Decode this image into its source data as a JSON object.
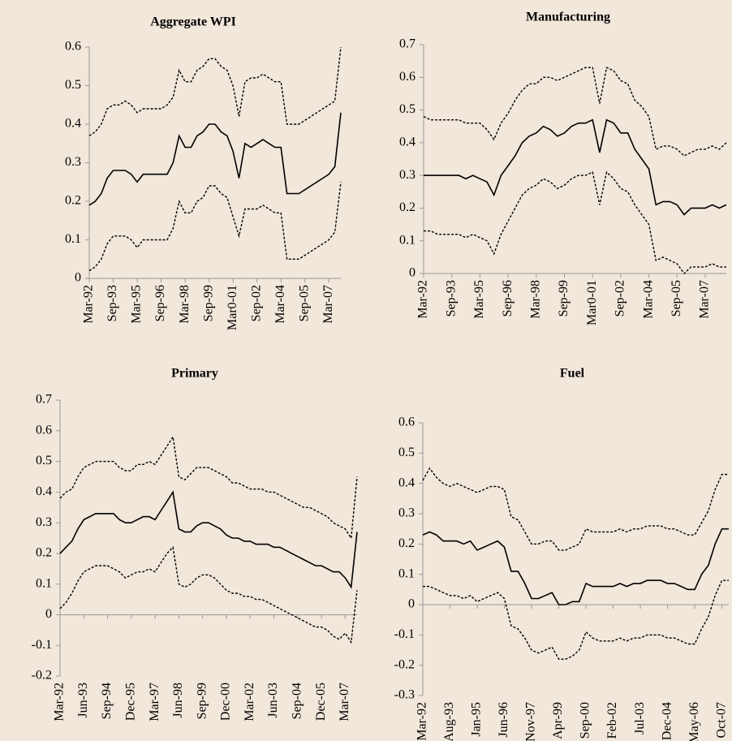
{
  "chart_data": [
    {
      "type": "line",
      "title": "Aggregate WPI",
      "categories": [
        "Mar-92",
        null,
        null,
        null,
        "Sep-93",
        null,
        null,
        null,
        "Mar-95",
        null,
        null,
        null,
        "Sep-96",
        null,
        null,
        null,
        "Mar-98",
        null,
        null,
        null,
        "Sep-99",
        null,
        null,
        null,
        "Mar0-01",
        null,
        null,
        null,
        "Sep-02",
        null,
        null,
        null,
        "Mar-04",
        null,
        null,
        null,
        "Sep-05",
        null,
        null,
        null,
        "Mar-07",
        null,
        null
      ],
      "ylim": [
        0,
        0.6
      ],
      "yticks": [
        0,
        0.1,
        0.2,
        0.3,
        0.4,
        0.5,
        0.6
      ],
      "grid": false,
      "series": [
        {
          "color": "#000000",
          "style": "dotted",
          "values": [
            0.37,
            0.38,
            0.4,
            0.44,
            0.45,
            0.45,
            0.46,
            0.45,
            0.43,
            0.44,
            0.44,
            0.44,
            0.44,
            0.45,
            0.47,
            0.54,
            0.51,
            0.51,
            0.54,
            0.55,
            0.57,
            0.57,
            0.55,
            0.54,
            0.5,
            0.42,
            0.51,
            0.52,
            0.52,
            0.53,
            0.52,
            0.51,
            0.51,
            0.4,
            0.4,
            0.4,
            0.41,
            0.42,
            0.43,
            0.44,
            0.45,
            0.46,
            0.6
          ]
        },
        {
          "color": "#000000",
          "style": "solid",
          "values": [
            0.19,
            0.2,
            0.22,
            0.26,
            0.28,
            0.28,
            0.28,
            0.27,
            0.25,
            0.27,
            0.27,
            0.27,
            0.27,
            0.27,
            0.3,
            0.37,
            0.34,
            0.34,
            0.37,
            0.38,
            0.4,
            0.4,
            0.38,
            0.37,
            0.33,
            0.26,
            0.35,
            0.34,
            0.35,
            0.36,
            0.35,
            0.34,
            0.34,
            0.22,
            0.22,
            0.22,
            0.23,
            0.24,
            0.25,
            0.26,
            0.27,
            0.29,
            0.43
          ]
        },
        {
          "color": "#000000",
          "style": "dotted",
          "values": [
            0.02,
            0.03,
            0.05,
            0.09,
            0.11,
            0.11,
            0.11,
            0.1,
            0.08,
            0.1,
            0.1,
            0.1,
            0.1,
            0.1,
            0.13,
            0.2,
            0.17,
            0.17,
            0.2,
            0.21,
            0.24,
            0.24,
            0.22,
            0.21,
            0.16,
            0.11,
            0.18,
            0.18,
            0.18,
            0.19,
            0.18,
            0.17,
            0.17,
            0.05,
            0.05,
            0.05,
            0.06,
            0.07,
            0.08,
            0.09,
            0.1,
            0.12,
            0.25
          ]
        }
      ]
    },
    {
      "type": "line",
      "title": "Manufacturing",
      "categories": [
        "Mar-92",
        null,
        null,
        null,
        "Sep-93",
        null,
        null,
        null,
        "Mar-95",
        null,
        null,
        null,
        "Sep-96",
        null,
        null,
        null,
        "Mar-98",
        null,
        null,
        null,
        "Sep-99",
        null,
        null,
        null,
        "Mar0-01",
        null,
        null,
        null,
        "Sep-02",
        null,
        null,
        null,
        "Mar-04",
        null,
        null,
        null,
        "Sep-05",
        null,
        null,
        null,
        "Mar-07",
        null,
        null,
        null
      ],
      "ylim": [
        0,
        0.7
      ],
      "yticks": [
        0,
        0.1,
        0.2,
        0.3,
        0.4,
        0.5,
        0.6,
        0.7
      ],
      "grid": false,
      "series": [
        {
          "color": "#000000",
          "style": "dotted",
          "values": [
            0.48,
            0.47,
            0.47,
            0.47,
            0.47,
            0.47,
            0.46,
            0.46,
            0.46,
            0.44,
            0.41,
            0.46,
            0.49,
            0.53,
            0.56,
            0.58,
            0.58,
            0.6,
            0.6,
            0.59,
            0.6,
            0.61,
            0.62,
            0.63,
            0.63,
            0.52,
            0.63,
            0.62,
            0.59,
            0.58,
            0.53,
            0.51,
            0.48,
            0.38,
            0.39,
            0.39,
            0.38,
            0.36,
            0.37,
            0.38,
            0.38,
            0.39,
            0.38,
            0.4
          ]
        },
        {
          "color": "#000000",
          "style": "solid",
          "values": [
            0.3,
            0.3,
            0.3,
            0.3,
            0.3,
            0.3,
            0.29,
            0.3,
            0.29,
            0.28,
            0.24,
            0.3,
            0.33,
            0.36,
            0.4,
            0.42,
            0.43,
            0.45,
            0.44,
            0.42,
            0.43,
            0.45,
            0.46,
            0.46,
            0.47,
            0.37,
            0.47,
            0.46,
            0.43,
            0.43,
            0.38,
            0.35,
            0.32,
            0.21,
            0.22,
            0.22,
            0.21,
            0.18,
            0.2,
            0.2,
            0.2,
            0.21,
            0.2,
            0.21
          ]
        },
        {
          "color": "#000000",
          "style": "dotted",
          "values": [
            0.13,
            0.13,
            0.12,
            0.12,
            0.12,
            0.12,
            0.11,
            0.12,
            0.11,
            0.1,
            0.06,
            0.12,
            0.16,
            0.2,
            0.24,
            0.26,
            0.27,
            0.29,
            0.28,
            0.26,
            0.27,
            0.29,
            0.3,
            0.3,
            0.31,
            0.21,
            0.31,
            0.29,
            0.26,
            0.25,
            0.21,
            0.18,
            0.15,
            0.04,
            0.05,
            0.04,
            0.03,
            0.0,
            0.02,
            0.02,
            0.02,
            0.03,
            0.02,
            0.02
          ]
        }
      ]
    },
    {
      "type": "line",
      "title": "Primary",
      "categories": [
        "Mar-92",
        null,
        null,
        null,
        "Jun-93",
        null,
        null,
        null,
        "Sep-94",
        null,
        null,
        null,
        "Dec-95",
        null,
        null,
        null,
        "Mar-97",
        null,
        null,
        null,
        "Jun-98",
        null,
        null,
        null,
        "Sep-99",
        null,
        null,
        null,
        "Dec-00",
        null,
        null,
        null,
        "Mar-02",
        null,
        null,
        null,
        "Jun-03",
        null,
        null,
        null,
        "Sep-04",
        null,
        null,
        null,
        "Dec-05",
        null,
        null,
        null,
        "Mar-07",
        null,
        null
      ],
      "ylim": [
        -0.2,
        0.7
      ],
      "yticks": [
        -0.2,
        -0.1,
        0,
        0.1,
        0.2,
        0.3,
        0.4,
        0.5,
        0.6,
        0.7
      ],
      "grid": false,
      "series": [
        {
          "color": "#000000",
          "style": "dotted",
          "values": [
            0.38,
            0.4,
            0.41,
            0.45,
            0.48,
            0.49,
            0.5,
            0.5,
            0.5,
            0.5,
            0.48,
            0.47,
            0.47,
            0.49,
            0.49,
            0.5,
            0.49,
            0.52,
            0.55,
            0.58,
            0.45,
            0.44,
            0.46,
            0.48,
            0.48,
            0.48,
            0.47,
            0.46,
            0.45,
            0.43,
            0.43,
            0.42,
            0.41,
            0.41,
            0.41,
            0.4,
            0.4,
            0.39,
            0.38,
            0.37,
            0.36,
            0.35,
            0.35,
            0.34,
            0.33,
            0.32,
            0.3,
            0.29,
            0.28,
            0.25,
            0.45
          ]
        },
        {
          "color": "#000000",
          "style": "solid",
          "values": [
            0.2,
            0.22,
            0.24,
            0.28,
            0.31,
            0.32,
            0.33,
            0.33,
            0.33,
            0.33,
            0.31,
            0.3,
            0.3,
            0.31,
            0.32,
            0.32,
            0.31,
            0.34,
            0.37,
            0.4,
            0.28,
            0.27,
            0.27,
            0.29,
            0.3,
            0.3,
            0.29,
            0.28,
            0.26,
            0.25,
            0.25,
            0.24,
            0.24,
            0.23,
            0.23,
            0.23,
            0.22,
            0.22,
            0.21,
            0.2,
            0.19,
            0.18,
            0.17,
            0.16,
            0.16,
            0.15,
            0.14,
            0.14,
            0.12,
            0.09,
            0.27
          ]
        },
        {
          "color": "#000000",
          "style": "dotted",
          "values": [
            0.02,
            0.04,
            0.07,
            0.11,
            0.14,
            0.15,
            0.16,
            0.16,
            0.16,
            0.15,
            0.14,
            0.12,
            0.13,
            0.14,
            0.14,
            0.15,
            0.14,
            0.17,
            0.2,
            0.22,
            0.1,
            0.09,
            0.1,
            0.12,
            0.13,
            0.13,
            0.12,
            0.1,
            0.08,
            0.07,
            0.07,
            0.06,
            0.06,
            0.05,
            0.05,
            0.04,
            0.03,
            0.02,
            0.01,
            0.0,
            -0.01,
            -0.02,
            -0.03,
            -0.04,
            -0.04,
            -0.05,
            -0.07,
            -0.08,
            -0.06,
            -0.09,
            0.08
          ]
        }
      ]
    },
    {
      "type": "line",
      "title": "Fuel",
      "categories": [
        "Mar-92",
        null,
        null,
        null,
        "Aug-93",
        null,
        null,
        null,
        "Jan-95",
        null,
        null,
        null,
        "Jun-96",
        null,
        null,
        null,
        "Nov-97",
        null,
        null,
        null,
        "Apr-99",
        null,
        null,
        null,
        "Sep-00",
        null,
        null,
        null,
        "Feb-02",
        null,
        null,
        null,
        "Jul-03",
        null,
        null,
        null,
        "Dec-04",
        null,
        null,
        null,
        "May-06",
        null,
        null,
        null,
        "Oct-07",
        null
      ],
      "ylim": [
        -0.3,
        0.6
      ],
      "yticks": [
        -0.3,
        -0.2,
        -0.1,
        0,
        0.1,
        0.2,
        0.3,
        0.4,
        0.5,
        0.6
      ],
      "grid": false,
      "series": [
        {
          "color": "#000000",
          "style": "dotted",
          "values": [
            0.41,
            0.45,
            0.42,
            0.4,
            0.39,
            0.4,
            0.39,
            0.38,
            0.37,
            0.38,
            0.39,
            0.39,
            0.38,
            0.29,
            0.28,
            0.24,
            0.2,
            0.2,
            0.21,
            0.21,
            0.18,
            0.18,
            0.19,
            0.2,
            0.25,
            0.24,
            0.24,
            0.24,
            0.24,
            0.25,
            0.24,
            0.25,
            0.25,
            0.26,
            0.26,
            0.26,
            0.25,
            0.25,
            0.24,
            0.23,
            0.23,
            0.27,
            0.31,
            0.38,
            0.43,
            0.43
          ]
        },
        {
          "color": "#000000",
          "style": "solid",
          "values": [
            0.23,
            0.24,
            0.23,
            0.21,
            0.21,
            0.21,
            0.2,
            0.21,
            0.18,
            0.19,
            0.2,
            0.21,
            0.19,
            0.11,
            0.11,
            0.07,
            0.02,
            0.02,
            0.03,
            0.04,
            0.0,
            0.0,
            0.01,
            0.01,
            0.07,
            0.06,
            0.06,
            0.06,
            0.06,
            0.07,
            0.06,
            0.07,
            0.07,
            0.08,
            0.08,
            0.08,
            0.07,
            0.07,
            0.06,
            0.05,
            0.05,
            0.1,
            0.13,
            0.2,
            0.25,
            0.25
          ]
        },
        {
          "color": "#000000",
          "style": "dotted",
          "values": [
            0.06,
            0.06,
            0.05,
            0.04,
            0.03,
            0.03,
            0.02,
            0.03,
            0.01,
            0.02,
            0.03,
            0.04,
            0.02,
            -0.07,
            -0.08,
            -0.11,
            -0.15,
            -0.16,
            -0.15,
            -0.14,
            -0.18,
            -0.18,
            -0.17,
            -0.15,
            -0.09,
            -0.11,
            -0.12,
            -0.12,
            -0.12,
            -0.11,
            -0.12,
            -0.11,
            -0.11,
            -0.1,
            -0.1,
            -0.1,
            -0.11,
            -0.11,
            -0.12,
            -0.13,
            -0.13,
            -0.08,
            -0.04,
            0.03,
            0.08,
            0.08
          ]
        }
      ]
    }
  ]
}
